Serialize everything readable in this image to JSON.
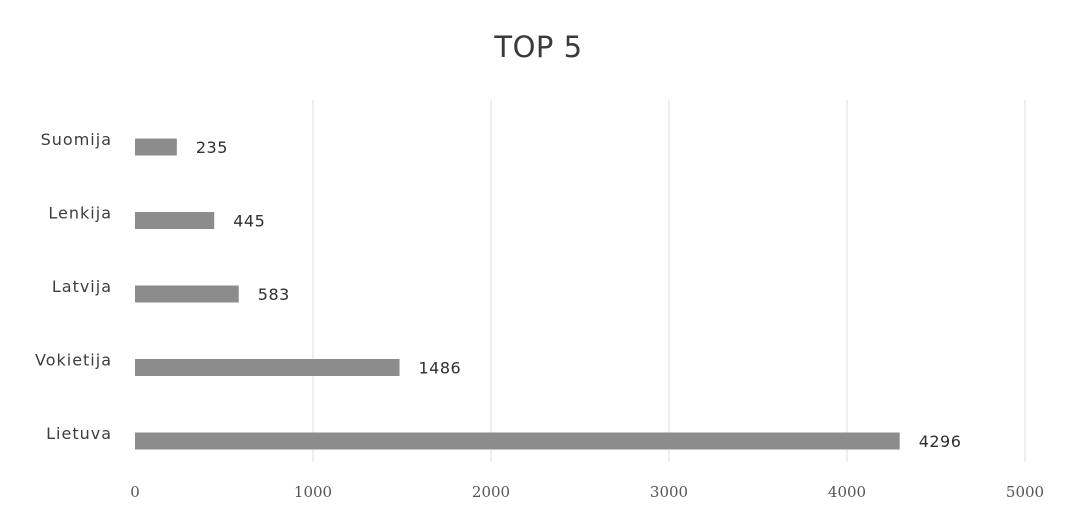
{
  "chart_data": {
    "type": "bar",
    "orientation": "horizontal",
    "title": "TOP 5",
    "categories": [
      "Suomija",
      "Lenkija",
      "Latvija",
      "Vokietija",
      "Lietuva"
    ],
    "values": [
      235,
      445,
      583,
      1486,
      4296
    ],
    "data_labels": [
      "235",
      "445",
      "583",
      "1486",
      "4296"
    ],
    "xlim": [
      0,
      5000
    ],
    "xticks": [
      0,
      1000,
      2000,
      3000,
      4000,
      5000
    ],
    "xtick_labels": [
      "0",
      "1000",
      "2000",
      "3000",
      "4000",
      "5000"
    ],
    "grid": "vertical",
    "legend": "none",
    "colors": {
      "bar": "#8c8c8c",
      "grid": "#dddddd",
      "text": "#3d3d3d"
    }
  }
}
